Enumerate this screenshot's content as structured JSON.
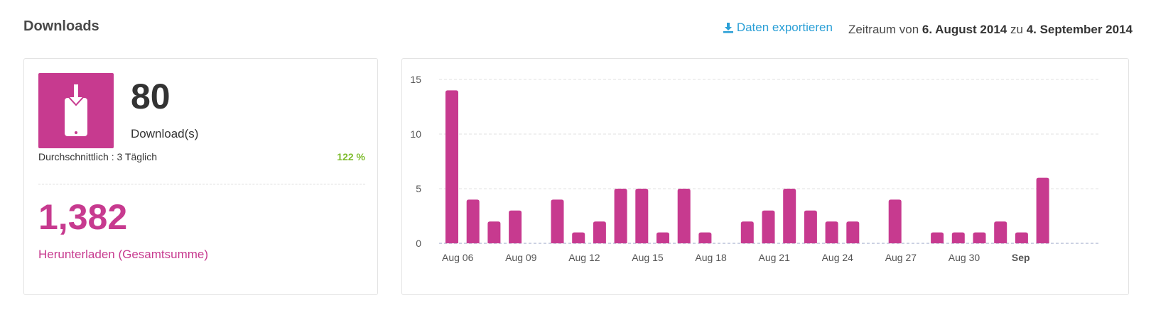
{
  "header": {
    "title": "Downloads",
    "export_label": "Daten exportieren",
    "period_prefix": "Zeitraum von",
    "period_start": "6. August 2014",
    "period_mid": "zu",
    "period_end": "4. September 2014"
  },
  "stats": {
    "downloads_value": "80",
    "downloads_label": "Download(s)",
    "average_label": "Durchschnittlich : 3 Täglich",
    "change_percent": "122 %",
    "total_value": "1,382",
    "total_label": "Herunterladen (Gesamtsumme)",
    "icon": "phone-download-icon"
  },
  "colors": {
    "accent": "#c73a8f",
    "link": "#2a9fd6",
    "positive": "#7dbb2c"
  },
  "chart_data": {
    "type": "bar",
    "categories": [
      "Aug 06",
      "Aug 07",
      "Aug 08",
      "Aug 09",
      "Aug 10",
      "Aug 11",
      "Aug 12",
      "Aug 13",
      "Aug 14",
      "Aug 15",
      "Aug 16",
      "Aug 17",
      "Aug 18",
      "Aug 19",
      "Aug 20",
      "Aug 21",
      "Aug 22",
      "Aug 23",
      "Aug 24",
      "Aug 25",
      "Aug 26",
      "Aug 27",
      "Aug 28",
      "Aug 29",
      "Aug 30",
      "Aug 31",
      "Sep 01",
      "Sep 02",
      "Sep 03",
      "Sep 04"
    ],
    "values": [
      14,
      4,
      2,
      3,
      0,
      4,
      1,
      2,
      5,
      5,
      1,
      5,
      1,
      0,
      2,
      3,
      5,
      3,
      2,
      2,
      0,
      4,
      0,
      1,
      1,
      1,
      2,
      1,
      6,
      0
    ],
    "tick_labels": [
      {
        "index": 0,
        "label": "Aug 06",
        "bold": false
      },
      {
        "index": 3,
        "label": "Aug 09",
        "bold": false
      },
      {
        "index": 6,
        "label": "Aug 12",
        "bold": false
      },
      {
        "index": 9,
        "label": "Aug 15",
        "bold": false
      },
      {
        "index": 12,
        "label": "Aug 18",
        "bold": false
      },
      {
        "index": 15,
        "label": "Aug 21",
        "bold": false
      },
      {
        "index": 18,
        "label": "Aug 24",
        "bold": false
      },
      {
        "index": 21,
        "label": "Aug 27",
        "bold": false
      },
      {
        "index": 24,
        "label": "Aug 30",
        "bold": false
      },
      {
        "index": 27,
        "label": "Sep",
        "bold": true
      }
    ],
    "y_ticks": [
      0,
      5,
      10,
      15
    ],
    "ylim": [
      0,
      15
    ],
    "grid": true,
    "color": "#c73a8f"
  }
}
